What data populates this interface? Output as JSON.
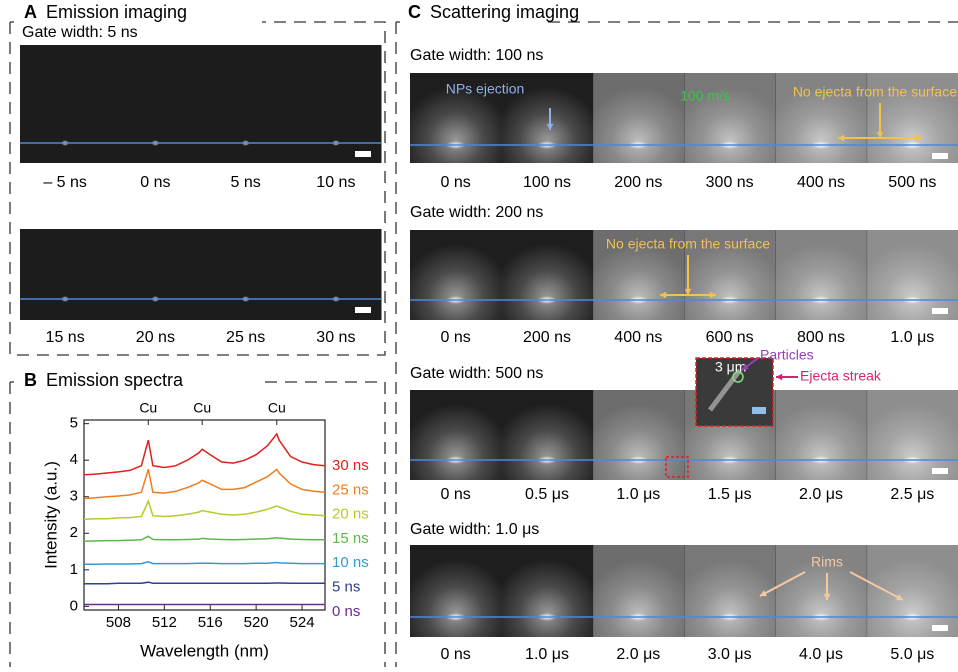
{
  "panel_a": {
    "letter": "A",
    "title": "Emission imaging",
    "rows": [
      {
        "gate_width": "Gate width: 5 ns",
        "times": [
          "– 5 ns",
          "0 ns",
          "5 ns",
          "10 ns"
        ]
      },
      {
        "times": [
          "15 ns",
          "20 ns",
          "25 ns",
          "30 ns"
        ]
      }
    ]
  },
  "chart_data": {
    "type": "line",
    "panel_letter": "B",
    "title": "Emission spectra",
    "x_label": "Wavelength (nm)",
    "y_label": "Intensity (a.u.)",
    "x": [
      505,
      506,
      507,
      508,
      509,
      510,
      510.6,
      511,
      512,
      513,
      514,
      515,
      515.3,
      516,
      517,
      518,
      519,
      520,
      521,
      521.8,
      522,
      523,
      524,
      525,
      526
    ],
    "series": [
      {
        "name": "30 ns",
        "color": "#e0201b",
        "values": [
          3.6,
          3.62,
          3.65,
          3.68,
          3.72,
          3.85,
          4.55,
          3.85,
          3.8,
          3.85,
          4.0,
          4.2,
          4.3,
          4.15,
          3.95,
          3.92,
          4.0,
          4.15,
          4.4,
          4.72,
          4.55,
          4.1,
          3.95,
          3.88,
          3.85
        ]
      },
      {
        "name": "25 ns",
        "color": "#f07c1e",
        "values": [
          2.95,
          2.97,
          3.0,
          3.02,
          3.05,
          3.12,
          3.75,
          3.12,
          3.1,
          3.15,
          3.25,
          3.38,
          3.45,
          3.35,
          3.2,
          3.2,
          3.25,
          3.4,
          3.55,
          3.75,
          3.65,
          3.35,
          3.2,
          3.15,
          3.12
        ]
      },
      {
        "name": "20 ns",
        "color": "#b7c92b",
        "values": [
          2.38,
          2.4,
          2.4,
          2.42,
          2.43,
          2.46,
          2.88,
          2.48,
          2.46,
          2.48,
          2.52,
          2.58,
          2.62,
          2.58,
          2.52,
          2.5,
          2.52,
          2.58,
          2.66,
          2.75,
          2.72,
          2.6,
          2.52,
          2.5,
          2.48
        ]
      },
      {
        "name": "15 ns",
        "color": "#5cb84c",
        "values": [
          1.78,
          1.79,
          1.8,
          1.8,
          1.81,
          1.82,
          1.92,
          1.83,
          1.82,
          1.82,
          1.83,
          1.84,
          1.86,
          1.84,
          1.83,
          1.82,
          1.83,
          1.84,
          1.85,
          1.88,
          1.87,
          1.84,
          1.83,
          1.82,
          1.82
        ]
      },
      {
        "name": "10 ns",
        "color": "#2f9bd6",
        "values": [
          1.15,
          1.15,
          1.16,
          1.16,
          1.16,
          1.17,
          1.22,
          1.17,
          1.17,
          1.17,
          1.17,
          1.18,
          1.18,
          1.18,
          1.17,
          1.17,
          1.17,
          1.18,
          1.18,
          1.2,
          1.19,
          1.18,
          1.17,
          1.17,
          1.17
        ]
      },
      {
        "name": "5 ns",
        "color": "#2e3f96",
        "values": [
          0.62,
          0.62,
          0.62,
          0.63,
          0.63,
          0.63,
          0.66,
          0.63,
          0.63,
          0.63,
          0.63,
          0.63,
          0.63,
          0.63,
          0.63,
          0.63,
          0.63,
          0.63,
          0.63,
          0.64,
          0.64,
          0.63,
          0.63,
          0.63,
          0.63
        ]
      },
      {
        "name": "0 ns",
        "color": "#6a2c91",
        "values": [
          0.05,
          0.05,
          0.05,
          0.05,
          0.05,
          0.05,
          0.05,
          0.05,
          0.05,
          0.05,
          0.05,
          0.05,
          0.05,
          0.05,
          0.05,
          0.05,
          0.05,
          0.05,
          0.05,
          0.05,
          0.05,
          0.05,
          0.05,
          0.05,
          0.05
        ]
      }
    ],
    "xlim": [
      505,
      526
    ],
    "ylim": [
      -0.1,
      5.1
    ],
    "xticks": [
      508,
      512,
      516,
      520,
      524
    ],
    "yticks": [
      0,
      1,
      2,
      3,
      4,
      5
    ],
    "annotations": [
      {
        "text": "Cu",
        "x": 510.6
      },
      {
        "text": "Cu",
        "x": 515.3
      },
      {
        "text": "Cu",
        "x": 521.8
      }
    ]
  },
  "panel_c": {
    "letter": "C",
    "title": "Scattering imaging",
    "rows": [
      {
        "gate_width": "Gate width: 100 ns",
        "times": [
          "0 ns",
          "100 ns",
          "200 ns",
          "300 ns",
          "400 ns",
          "500 ns"
        ],
        "annotations": [
          {
            "text": "NPs ejection",
            "color": "#8fb0e8"
          },
          {
            "text": "100 m/s",
            "color": "#3fc24a"
          },
          {
            "text": "No ejecta from the surface",
            "color": "#f2c14e"
          }
        ]
      },
      {
        "gate_width": "Gate width: 200 ns",
        "times": [
          "0 ns",
          "200 ns",
          "400 ns",
          "600 ns",
          "800 ns",
          "1.0 μs"
        ],
        "annotations": [
          {
            "text": "No ejecta from the surface",
            "color": "#f2c14e"
          }
        ]
      },
      {
        "gate_width": "Gate width: 500 ns",
        "times": [
          "0 ns",
          "0.5 μs",
          "1.0 μs",
          "1.5 μs",
          "2.0 μs",
          "2.5 μs"
        ],
        "annotations": [
          {
            "text": "3 μm",
            "color": "#ffffff"
          },
          {
            "text": "Particles",
            "color": "#9a3fb5"
          },
          {
            "text": "Ejecta streak",
            "color": "#d6246e"
          }
        ]
      },
      {
        "gate_width": "Gate width: 1.0 μs",
        "times": [
          "0 ns",
          "1.0 μs",
          "2.0 μs",
          "3.0 μs",
          "4.0 μs",
          "5.0 μs"
        ],
        "annotations": [
          {
            "text": "Rims",
            "color": "#f5c9a0"
          }
        ]
      }
    ]
  }
}
